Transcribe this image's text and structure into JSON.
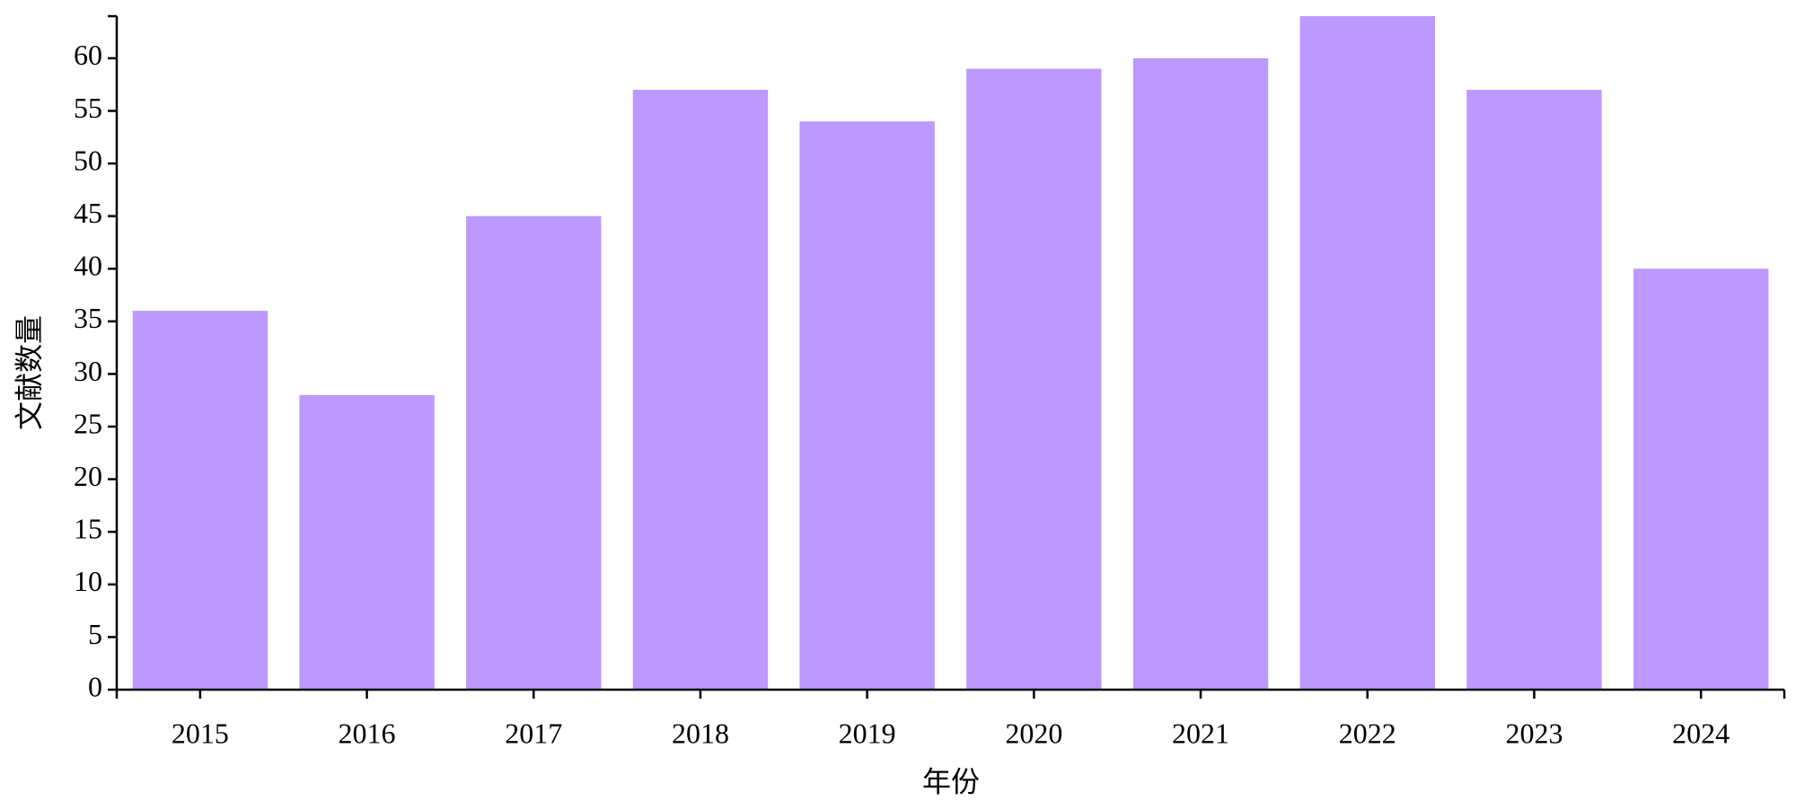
{
  "chart_data": {
    "type": "bar",
    "x_label": "年份",
    "y_label": "文献数量",
    "categories": [
      "2015",
      "2016",
      "2017",
      "2018",
      "2019",
      "2020",
      "2021",
      "2022",
      "2023",
      "2024"
    ],
    "values": [
      36,
      28,
      45,
      57,
      54,
      59,
      60,
      64,
      57,
      40
    ],
    "color": "#bb99ff",
    "ylim": [
      0,
      64
    ],
    "yticks": [
      0,
      5,
      10,
      15,
      20,
      25,
      30,
      35,
      40,
      45,
      50,
      55,
      60
    ],
    "grid": false
  }
}
